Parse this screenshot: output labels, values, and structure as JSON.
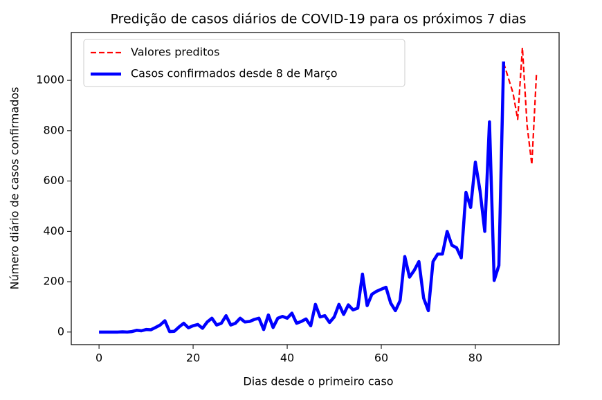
{
  "chart_data": {
    "type": "line",
    "title": "Predição de casos diários de COVID-19 para os próximos 7 dias",
    "xlabel": "Dias desde o primeiro caso",
    "ylabel": "Número diário de casos confirmados",
    "xlim": [
      -5.9,
      97.8
    ],
    "ylim": [
      -50,
      1190
    ],
    "xticks": [
      0,
      20,
      40,
      60,
      80
    ],
    "yticks": [
      0,
      200,
      400,
      600,
      800,
      1000
    ],
    "grid": false,
    "legend": "upper left",
    "series": [
      {
        "name": "Valores preditos",
        "color": "#ff0000",
        "style": "dashed",
        "x": [
          86,
          87,
          88,
          89,
          90,
          91,
          92,
          93
        ],
        "values": [
          1070,
          1010,
          950,
          845,
          1130,
          820,
          665,
          1030
        ]
      },
      {
        "name": "Casos confirmados desde 8 de Março",
        "color": "#0000ff",
        "style": "solid",
        "x": [
          0,
          1,
          2,
          3,
          4,
          5,
          6,
          7,
          8,
          9,
          10,
          11,
          12,
          13,
          14,
          15,
          16,
          17,
          18,
          19,
          20,
          21,
          22,
          23,
          24,
          25,
          26,
          27,
          28,
          29,
          30,
          31,
          32,
          33,
          34,
          35,
          36,
          37,
          38,
          39,
          40,
          41,
          42,
          43,
          44,
          45,
          46,
          47,
          48,
          49,
          50,
          51,
          52,
          53,
          54,
          55,
          56,
          57,
          58,
          59,
          60,
          61,
          62,
          63,
          64,
          65,
          66,
          67,
          68,
          69,
          70,
          71,
          72,
          73,
          74,
          75,
          76,
          77,
          78,
          79,
          80,
          81,
          82,
          83,
          84,
          85,
          86
        ],
        "values": [
          0,
          0,
          0,
          0,
          0,
          1,
          0,
          2,
          7,
          5,
          10,
          9,
          18,
          28,
          45,
          2,
          3,
          20,
          35,
          17,
          25,
          30,
          15,
          40,
          55,
          28,
          35,
          65,
          28,
          35,
          55,
          40,
          42,
          50,
          55,
          10,
          68,
          18,
          55,
          62,
          55,
          75,
          35,
          42,
          52,
          25,
          110,
          60,
          65,
          38,
          60,
          110,
          70,
          108,
          88,
          95,
          230,
          105,
          150,
          162,
          170,
          178,
          115,
          85,
          125,
          300,
          218,
          245,
          280,
          135,
          85,
          280,
          310,
          310,
          400,
          345,
          335,
          295,
          555,
          495,
          675,
          560,
          400,
          835,
          205,
          265,
          1075
        ]
      }
    ]
  }
}
